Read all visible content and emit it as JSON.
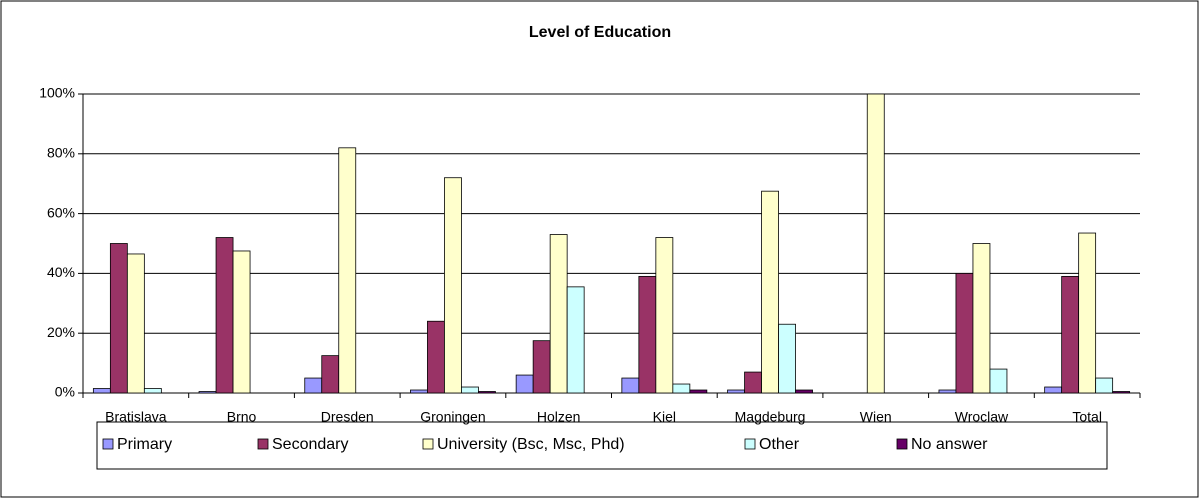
{
  "chart_data": {
    "type": "bar",
    "title": "Level of Education",
    "categories": [
      "Bratislava",
      "Brno",
      "Dresden",
      "Groningen",
      "Holzen",
      "Kiel",
      "Magdeburg",
      "Wien",
      "Wroclaw",
      "Total"
    ],
    "series": [
      {
        "name": "Primary",
        "color": "#9999ff",
        "values": [
          1.5,
          0.5,
          5,
          1,
          6,
          5,
          1,
          0,
          1,
          2
        ]
      },
      {
        "name": "Secondary",
        "color": "#993366",
        "values": [
          50,
          52,
          12.5,
          24,
          17.5,
          39,
          7,
          0,
          40,
          39
        ]
      },
      {
        "name": "University (Bsc, Msc, Phd)",
        "color": "#ffffcc",
        "values": [
          46.5,
          47.5,
          82,
          72,
          53,
          52,
          67.5,
          100,
          50,
          53.5
        ]
      },
      {
        "name": "Other",
        "color": "#ccffff",
        "values": [
          1.5,
          0,
          0,
          2,
          35.5,
          3,
          23,
          0,
          8,
          5
        ]
      },
      {
        "name": "No answer",
        "color": "#660066",
        "values": [
          0,
          0,
          0,
          0.5,
          0,
          1,
          1,
          0,
          0,
          0.5
        ]
      }
    ],
    "ylim": [
      0,
      100
    ],
    "yticks": [
      {
        "value": 0,
        "label": "0%"
      },
      {
        "value": 20,
        "label": "20%"
      },
      {
        "value": 40,
        "label": "40%"
      },
      {
        "value": 60,
        "label": "60%"
      },
      {
        "value": 80,
        "label": "80%"
      },
      {
        "value": 100,
        "label": "100%"
      }
    ],
    "grid": true,
    "legend": "bottom"
  }
}
